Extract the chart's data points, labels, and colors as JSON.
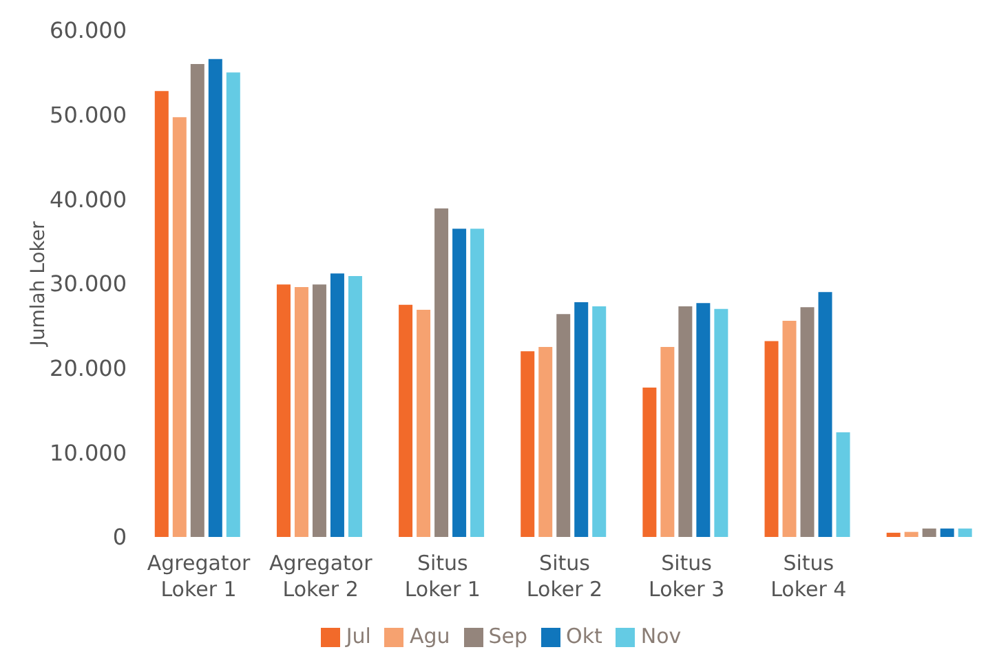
{
  "chart_data": {
    "type": "bar",
    "ylabel": "Jumlah Loker",
    "categories": [
      "Agregator Loker 1",
      "Agregator Loker 2",
      "Situs Loker 1",
      "Situs Loker 2",
      "Situs Loker 3",
      "Situs Loker 4",
      null
    ],
    "series": [
      {
        "name": "Jul",
        "color": "#f26a2a",
        "values": [
          52800,
          29900,
          27500,
          22000,
          17700,
          23200,
          500
        ]
      },
      {
        "name": "Agu",
        "color": "#f6a270",
        "values": [
          49700,
          29600,
          26900,
          22500,
          22500,
          25600,
          600
        ]
      },
      {
        "name": "Sep",
        "color": "#94857c",
        "values": [
          56000,
          29900,
          38900,
          26400,
          27300,
          27200,
          1000
        ]
      },
      {
        "name": "Okt",
        "color": "#1076bc",
        "values": [
          56600,
          31200,
          36500,
          27800,
          27700,
          29000,
          1000
        ]
      },
      {
        "name": "Nov",
        "color": "#64cbe4",
        "values": [
          55000,
          30900,
          36500,
          27300,
          27000,
          12400,
          1000
        ]
      }
    ],
    "ylim": [
      0,
      60000
    ],
    "yticks": [
      {
        "value": 0,
        "label": "0"
      },
      {
        "value": 10000,
        "label": "10.000"
      },
      {
        "value": 20000,
        "label": "20.000"
      },
      {
        "value": 30000,
        "label": "30.000"
      },
      {
        "value": 40000,
        "label": "40.000"
      },
      {
        "value": 50000,
        "label": "50.000"
      },
      {
        "value": 60000,
        "label": "60.000"
      }
    ],
    "grid": false,
    "legend": "bottom"
  }
}
